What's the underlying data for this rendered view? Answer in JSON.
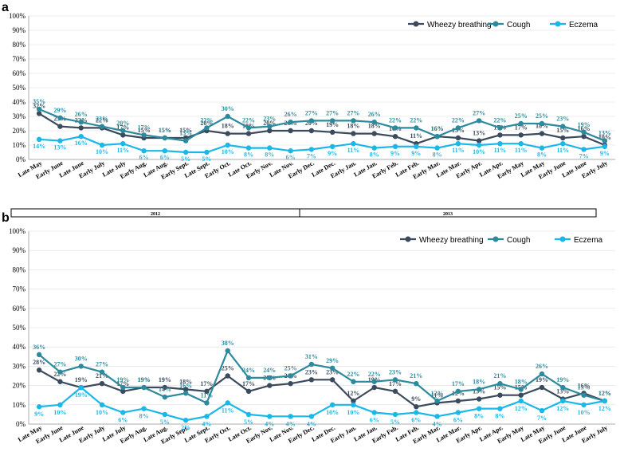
{
  "colors": {
    "wheezy": "#3b4a5c",
    "cough": "#2b8a9c",
    "eczema": "#1ab8e8",
    "grid": "#dddddd",
    "axis": "#999999"
  },
  "chart_data": [
    {
      "panel": "a",
      "type": "line",
      "title": "",
      "xlabel": "",
      "ylabel": "",
      "ylim": [
        0,
        100
      ],
      "yticks": [
        "0%",
        "10%",
        "20%",
        "30%",
        "40%",
        "50%",
        "60%",
        "70%",
        "80%",
        "90%",
        "100%"
      ],
      "legend_position": "top-right",
      "categories": [
        "Late May",
        "Early June",
        "Late June",
        "Early July",
        "Late July",
        "Early Aug.",
        "Late Aug.",
        "Early Sept.",
        "Late Sept.",
        "Early Oct.",
        "Late Oct.",
        "Early Nov.",
        "Late Nov.",
        "Early Dec.",
        "Late Dec.",
        "Early Jan.",
        "Late Jan.",
        "Early Feb.",
        "Late Feb.",
        "Early Mar.",
        "Late Mar.",
        "Early Apr.",
        "Late Apr.",
        "Early May",
        "Late May",
        "Early June",
        "Late June",
        "Early July"
      ],
      "years": [
        {
          "label": "2012",
          "start": 0,
          "end": 14
        },
        {
          "label": "2013",
          "start": 14,
          "end": 28
        }
      ],
      "series": [
        {
          "name": "Wheezy breathing",
          "key": "wheezy",
          "values": [
            32,
            23,
            22,
            22,
            17,
            15,
            15,
            15,
            20,
            18,
            18,
            20,
            20,
            20,
            19,
            18,
            18,
            16,
            11,
            16,
            15,
            13,
            17,
            17,
            18,
            15,
            16,
            10
          ]
        },
        {
          "name": "Cough",
          "key": "cough",
          "values": [
            35,
            29,
            26,
            23,
            20,
            17,
            15,
            13,
            22,
            30,
            22,
            23,
            26,
            27,
            27,
            27,
            26,
            22,
            22,
            16,
            22,
            27,
            22,
            25,
            25,
            23,
            19,
            13
          ]
        },
        {
          "name": "Eczema",
          "key": "eczema",
          "values": [
            14,
            13,
            16,
            10,
            11,
            6,
            6,
            5,
            5,
            10,
            8,
            8,
            6,
            7,
            9,
            11,
            8,
            9,
            9,
            8,
            11,
            10,
            11,
            11,
            8,
            11,
            7,
            9
          ]
        }
      ]
    },
    {
      "panel": "b",
      "type": "line",
      "title": "",
      "xlabel": "",
      "ylabel": "",
      "ylim": [
        0,
        100
      ],
      "yticks": [
        "0%",
        "10%",
        "20%",
        "30%",
        "40%",
        "50%",
        "60%",
        "70%",
        "80%",
        "90%",
        "100%"
      ],
      "legend_position": "top-right",
      "categories": [
        "Late May",
        "Early June",
        "Late June",
        "Early July",
        "Late July",
        "Early Aug.",
        "Late Aug.",
        "Early Sept.",
        "Late Sept.",
        "Early Oct.",
        "Late Oct.",
        "Early Nov.",
        "Late Nov.",
        "Early Dec.",
        "Late Dec.",
        "Early Jan.",
        "Late Jan.",
        "Early Feb.",
        "Late Feb.",
        "Early Mar.",
        "Late Mar.",
        "Early Apr.",
        "Late Apr.",
        "Early May",
        "Late May",
        "Early June",
        "Late June",
        "Early July"
      ],
      "series": [
        {
          "name": "Wheezy breathing",
          "key": "wheezy",
          "values": [
            28,
            22,
            19,
            21,
            17,
            19,
            19,
            18,
            17,
            25,
            17,
            20,
            21,
            23,
            23,
            12,
            19,
            17,
            9,
            11,
            12,
            13,
            15,
            15,
            19,
            13,
            16,
            12
          ]
        },
        {
          "name": "Cough",
          "key": "cough",
          "values": [
            36,
            27,
            30,
            27,
            19,
            19,
            14,
            16,
            11,
            38,
            24,
            24,
            25,
            31,
            29,
            22,
            22,
            23,
            21,
            12,
            17,
            18,
            21,
            18,
            26,
            19,
            15,
            12
          ]
        },
        {
          "name": "Eczema",
          "key": "eczema",
          "values": [
            9,
            10,
            19,
            10,
            6,
            8,
            5,
            2,
            4,
            11,
            5,
            4,
            4,
            4,
            10,
            10,
            6,
            5,
            6,
            4,
            6,
            8,
            8,
            12,
            7,
            12,
            10,
            12
          ]
        }
      ]
    }
  ]
}
